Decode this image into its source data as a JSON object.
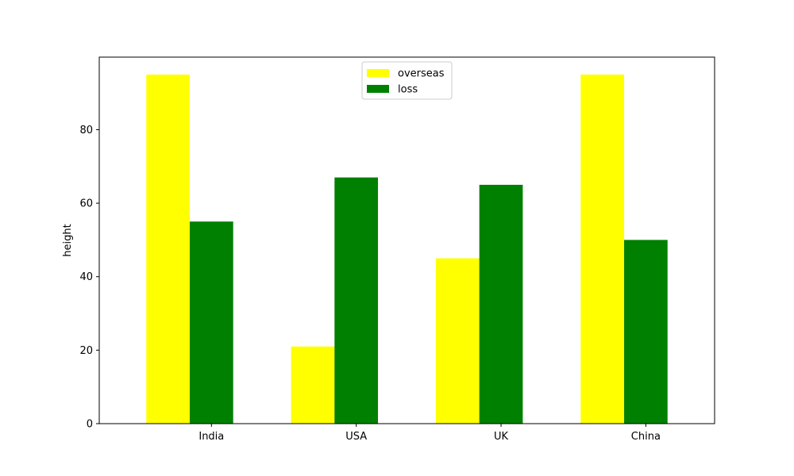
{
  "chart_data": {
    "type": "bar",
    "title": "",
    "xlabel": "",
    "ylabel": "height",
    "categories": [
      "India",
      "USA",
      "UK",
      "China"
    ],
    "series": [
      {
        "name": "overseas",
        "color": "#ffff00",
        "values": [
          95,
          21,
          45,
          95
        ]
      },
      {
        "name": "loss",
        "color": "#008000",
        "values": [
          55,
          67,
          65,
          50
        ]
      }
    ],
    "ylim": [
      0,
      99.75
    ],
    "yticks": [
      0,
      20,
      40,
      60,
      80
    ],
    "grid": false,
    "legend_position": "top-center"
  }
}
